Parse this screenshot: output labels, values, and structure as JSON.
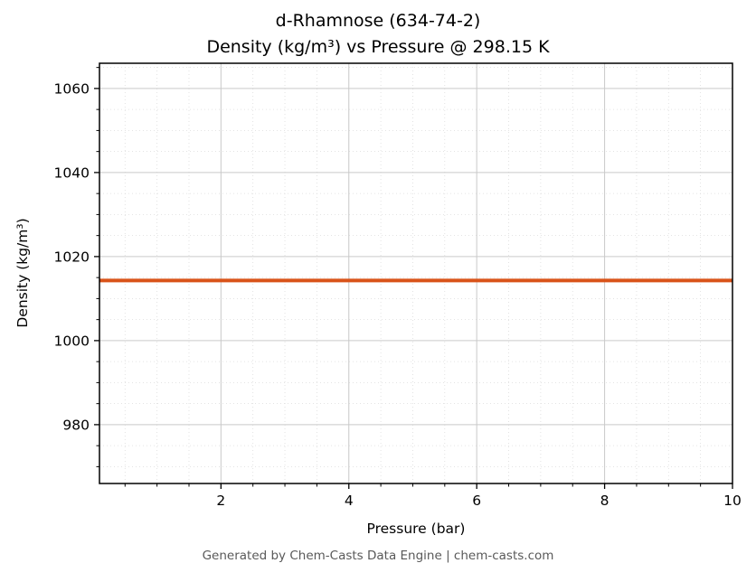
{
  "chart": {
    "title_line1": "d-Rhamnose (634-74-2)",
    "title_line2": "Density (kg/m³) vs Pressure @ 298.15 K",
    "xlabel": "Pressure (bar)",
    "ylabel": "Density (kg/m³)"
  },
  "footer": "Generated by Chem-Casts Data Engine | chem-casts.com",
  "chart_data": {
    "type": "line",
    "title": "d-Rhamnose (634-74-2) — Density (kg/m³) vs Pressure @ 298.15 K",
    "xlabel": "Pressure (bar)",
    "ylabel": "Density (kg/m³)",
    "xlim": [
      0.1,
      10
    ],
    "ylim": [
      966,
      1066
    ],
    "x_ticks": [
      2,
      4,
      6,
      8,
      10
    ],
    "y_ticks": [
      980,
      1000,
      1020,
      1040,
      1060
    ],
    "x_minor_step": 0.5,
    "y_minor_step": 5,
    "grid": true,
    "minor_grid": true,
    "legend": "none",
    "series": [
      {
        "name": "Density",
        "color": "#d95319",
        "line_width": 4,
        "x": [
          0.1,
          10.0
        ],
        "y": [
          1014.3,
          1014.3
        ]
      }
    ],
    "colors": {
      "major_grid": "#c9c9c9",
      "minor_grid": "#dcdcdc",
      "spine": "#000000",
      "footer_text": "#595959"
    }
  }
}
